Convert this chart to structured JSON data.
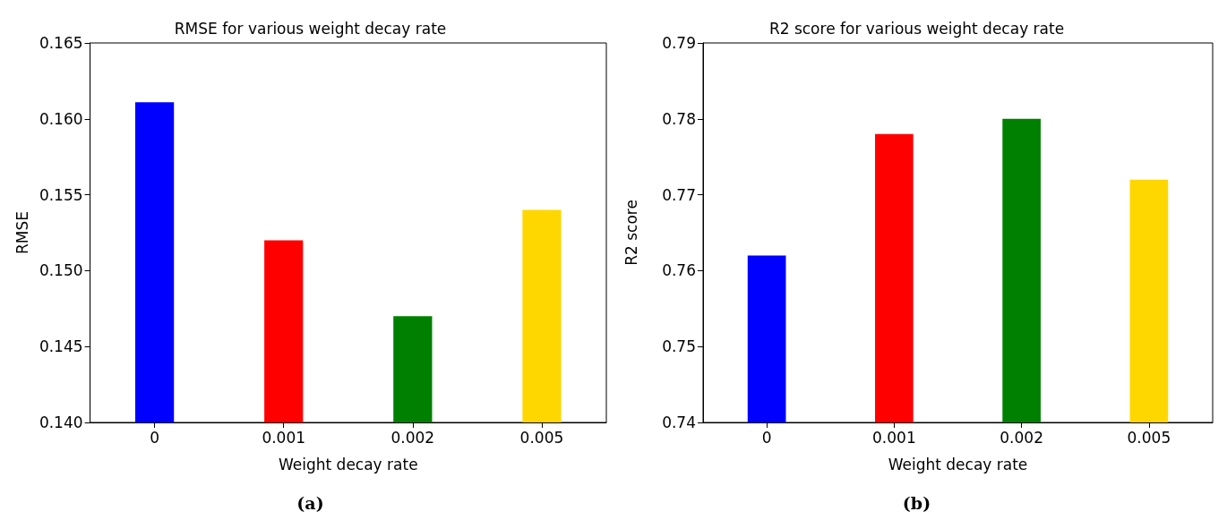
{
  "chart_data": [
    {
      "type": "bar",
      "title": "RMSE for various weight decay rate",
      "xlabel": "Weight decay rate",
      "ylabel": "RMSE",
      "categories": [
        "0",
        "0.001",
        "0.002",
        "0.005"
      ],
      "values": [
        0.1611,
        0.152,
        0.147,
        0.154
      ],
      "colors": [
        "#0000ff",
        "#ff0000",
        "#008000",
        "#ffd700"
      ],
      "ylim": [
        0.14,
        0.165
      ],
      "yticks": [
        {
          "value": 0.14,
          "label": "0.140"
        },
        {
          "value": 0.145,
          "label": "0.145"
        },
        {
          "value": 0.15,
          "label": "0.150"
        },
        {
          "value": 0.155,
          "label": "0.155"
        },
        {
          "value": 0.16,
          "label": "0.160"
        },
        {
          "value": 0.165,
          "label": "0.165"
        }
      ],
      "grid": false,
      "annotations": [
        "(a)"
      ]
    },
    {
      "type": "bar",
      "title": "R2 score for various weight decay rate",
      "xlabel": "Weight decay rate",
      "ylabel": "R2 score",
      "categories": [
        "0",
        "0.001",
        "0.002",
        "0.005"
      ],
      "values": [
        0.762,
        0.778,
        0.78,
        0.772
      ],
      "colors": [
        "#0000ff",
        "#ff0000",
        "#008000",
        "#ffd700"
      ],
      "ylim": [
        0.74,
        0.79
      ],
      "yticks": [
        {
          "value": 0.74,
          "label": "0.74"
        },
        {
          "value": 0.75,
          "label": "0.75"
        },
        {
          "value": 0.76,
          "label": "0.76"
        },
        {
          "value": 0.77,
          "label": "0.77"
        },
        {
          "value": 0.78,
          "label": "0.78"
        },
        {
          "value": 0.79,
          "label": "0.79"
        }
      ],
      "grid": false,
      "annotations": [
        "(b)"
      ]
    }
  ]
}
